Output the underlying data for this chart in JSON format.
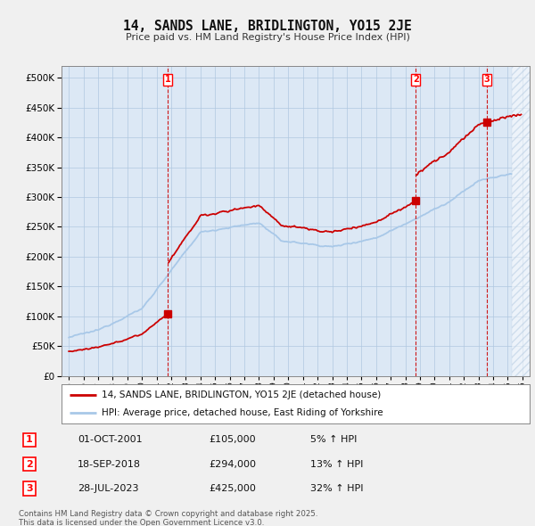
{
  "title": "14, SANDS LANE, BRIDLINGTON, YO15 2JE",
  "subtitle": "Price paid vs. HM Land Registry's House Price Index (HPI)",
  "legend_line1": "14, SANDS LANE, BRIDLINGTON, YO15 2JE (detached house)",
  "legend_line2": "HPI: Average price, detached house, East Riding of Yorkshire",
  "footer_line1": "Contains HM Land Registry data © Crown copyright and database right 2025.",
  "footer_line2": "This data is licensed under the Open Government Licence v3.0.",
  "transactions": [
    {
      "num": 1,
      "date": "01-OCT-2001",
      "price": "£105,000",
      "change": "5% ↑ HPI",
      "year": 2001.75
    },
    {
      "num": 2,
      "date": "18-SEP-2018",
      "price": "£294,000",
      "change": "13% ↑ HPI",
      "year": 2018.71
    },
    {
      "num": 3,
      "date": "28-JUL-2023",
      "price": "£425,000",
      "change": "32% ↑ HPI",
      "year": 2023.57
    }
  ],
  "hpi_color": "#a8c8e8",
  "price_color": "#cc0000",
  "dashed_color": "#cc0000",
  "background_color": "#f0f0f0",
  "plot_bg_color": "#dce8f5",
  "grid_color": "#b0c8e0",
  "ylim": [
    0,
    520000
  ],
  "yticks": [
    0,
    50000,
    100000,
    150000,
    200000,
    250000,
    300000,
    350000,
    400000,
    450000,
    500000
  ],
  "xlim_start": 1994.5,
  "xlim_end": 2026.5,
  "price1": 105000,
  "price2": 294000,
  "price3": 425000,
  "t1": 2001.75,
  "t2": 2018.71,
  "t3": 2023.57
}
